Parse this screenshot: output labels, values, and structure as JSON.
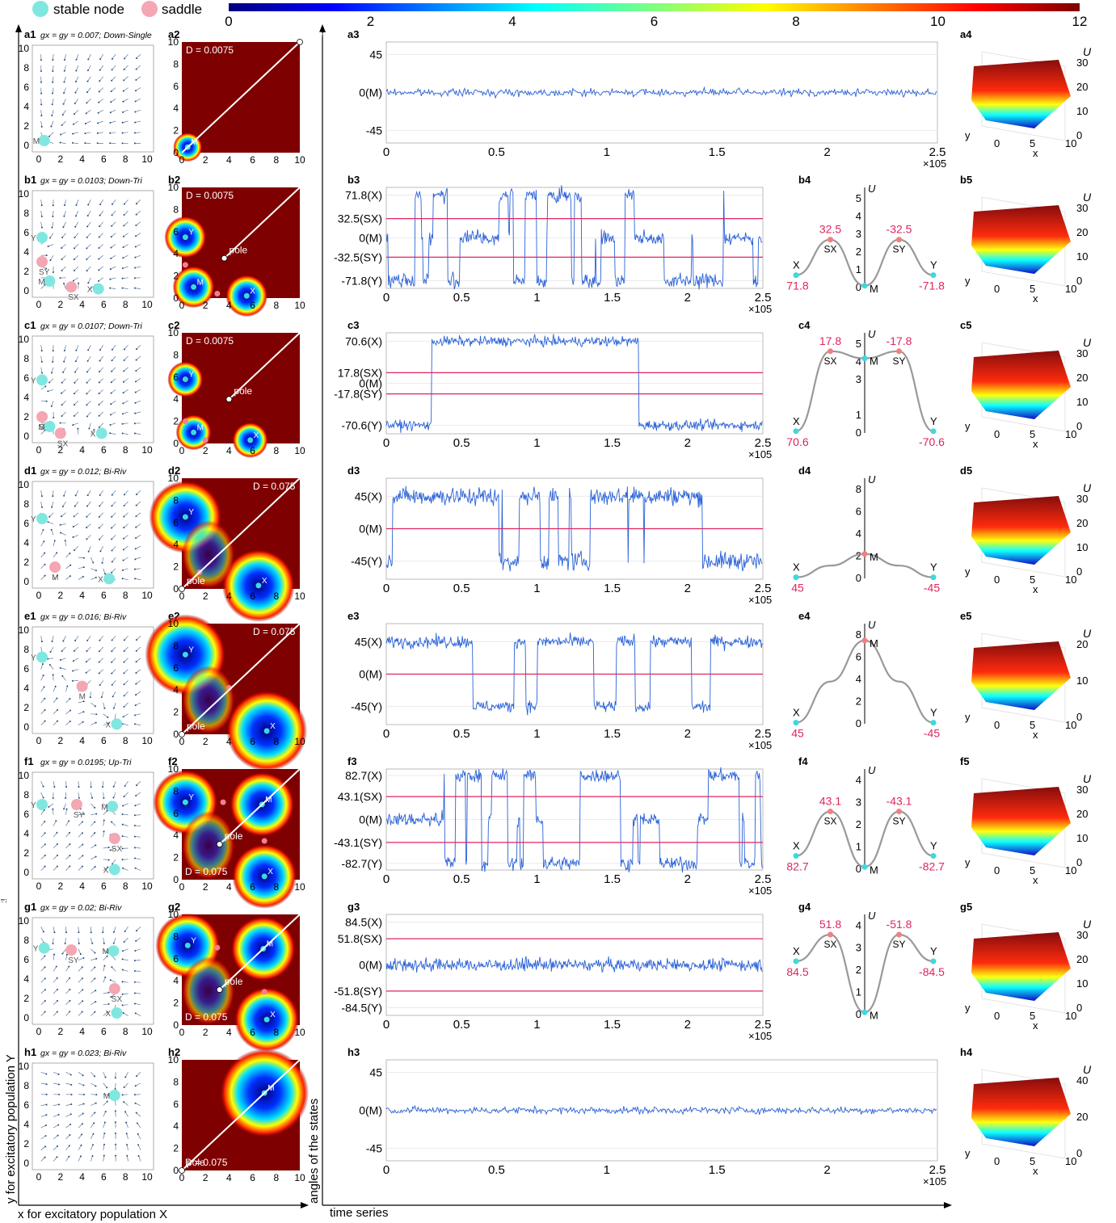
{
  "legend": {
    "stable_label": "stable node",
    "saddle_label": "saddle",
    "stable_color": "#7fe7e0",
    "saddle_color": "#f4a6b2"
  },
  "colorbar": {
    "ticks": [
      "0",
      "2",
      "4",
      "6",
      "8",
      "10",
      "12"
    ]
  },
  "axes_labels": {
    "phase_y": "y for excitatory population Y",
    "phase_x": "x for excitatory population X",
    "angles": "angles of the states",
    "time": "time series",
    "stray": ":!"
  },
  "chart_data": {
    "type": "line",
    "rows": [
      {
        "id": "a",
        "panels": [
          "a1",
          "a2",
          "a3",
          "a4"
        ],
        "param": "gx = gy = 0.007; Down-Single",
        "D": "D = 0.0075",
        "ticks": [
          "45",
          "0(M)",
          "-45"
        ],
        "tick_vals": [
          45,
          0,
          -45
        ],
        "ylim": [
          -60,
          60
        ],
        "lines": [],
        "mode": "M",
        "xticks": [
          "0",
          "0.5",
          "1",
          "1.5",
          "2",
          "2.5"
        ],
        "xmult": "×10^5",
        "landscape": null
      },
      {
        "id": "b",
        "panels": [
          "b1",
          "b2",
          "b3",
          "b4",
          "b5"
        ],
        "param": "gx = gy = 0.0103; Down-Tri",
        "D": "D = 0.0075",
        "ticks": [
          "71.8(X)",
          "32.5(SX)",
          "0(M)",
          "-32.5(SY)",
          "-71.8(Y)"
        ],
        "tick_vals": [
          71.8,
          32.5,
          0,
          -32.5,
          -71.8
        ],
        "ylim": [
          -85,
          85
        ],
        "lines": [
          32.5,
          -32.5
        ],
        "mode": "tri",
        "xticks": [
          "0",
          "0.5",
          "1",
          "1.5",
          "2",
          "2.5"
        ],
        "xmult": "×10^5",
        "landscape": {
          "umax": 5,
          "uticks": [
            "0",
            "1",
            "2",
            "3",
            "4",
            "5"
          ],
          "X": "71.8",
          "SX": "32.5",
          "SY": "-32.5",
          "Y": "-71.8",
          "uX": 0.7,
          "uSX": 2.7,
          "uM": 0.1,
          "uSY": 2.7,
          "uY": 0.7
        }
      },
      {
        "id": "c",
        "panels": [
          "c1",
          "c2",
          "c3",
          "c4",
          "c5"
        ],
        "param": "gx = gy = 0.0107; Down-Tri",
        "D": "D = 0.0075",
        "ticks": [
          "70.6(X)",
          "17.8(SX)",
          "0(M)",
          "-17.8(SY)",
          "-70.6(Y)"
        ],
        "tick_vals": [
          70.6,
          17.8,
          0,
          -17.8,
          -70.6
        ],
        "ylim": [
          -85,
          85
        ],
        "lines": [
          17.8,
          -17.8
        ],
        "mode": "c",
        "xticks": [
          "0",
          "0.5",
          "1",
          "1.5",
          "2",
          "2.5"
        ],
        "xmult": "×10^5",
        "landscape": {
          "umax": 5,
          "uticks": [
            "0",
            "1",
            "3",
            "4",
            "5"
          ],
          "X": "70.6",
          "SX": "17.8",
          "SY": "-17.8",
          "Y": "-70.6",
          "uX": 0.1,
          "uSX": 4.6,
          "uM": 4.2,
          "uSY": 4.6,
          "uY": 0.1
        }
      },
      {
        "id": "d",
        "panels": [
          "d1",
          "d2",
          "d3",
          "d4",
          "d5"
        ],
        "param": "gx = gy = 0.012; Bi-Riv",
        "D": "D = 0.075",
        "ticks": [
          "45(X)",
          "0(M)",
          "-45(Y)"
        ],
        "tick_vals": [
          45,
          0,
          -45
        ],
        "ylim": [
          -70,
          70
        ],
        "lines": [
          0
        ],
        "mode": "bi",
        "xticks": [
          "0",
          "0.5",
          "1",
          "1.5",
          "2",
          "2.5"
        ],
        "xmult": "×10^5",
        "landscape": {
          "umax": 8,
          "uticks": [
            "0",
            "2",
            "4",
            "6",
            "8"
          ],
          "X": "45",
          "Y": "-45",
          "uX": 0.1,
          "uM": 2.2,
          "uY": 0.1
        }
      },
      {
        "id": "e",
        "panels": [
          "e1",
          "e2",
          "e3",
          "e4",
          "e5"
        ],
        "param": "gx = gy = 0.016; Bi-Riv",
        "D": "D = 0.075",
        "ticks": [
          "45(X)",
          "0(M)",
          "-45(Y)"
        ],
        "tick_vals": [
          45,
          0,
          -45
        ],
        "ylim": [
          -70,
          70
        ],
        "lines": [
          0
        ],
        "mode": "e",
        "xticks": [
          "0",
          "0.5",
          "1",
          "1.5",
          "2",
          "2.5"
        ],
        "xmult": "×10^5",
        "landscape": {
          "umax": 8,
          "uticks": [
            "0",
            "2",
            "4",
            "6",
            "8"
          ],
          "X": "45",
          "Y": "-45",
          "uX": 0.1,
          "uM": 7.5,
          "uY": 0.1
        }
      },
      {
        "id": "f",
        "panels": [
          "f1",
          "f2",
          "f3",
          "f4",
          "f5"
        ],
        "param": "gx = gy = 0.0195; Up-Tri",
        "D": "D = 0.075",
        "ticks": [
          "82.7(X)",
          "43.1(SX)",
          "0(M)",
          "-43.1(SY)",
          "-82.7(Y)"
        ],
        "tick_vals": [
          82.7,
          43.1,
          0,
          -43.1,
          -82.7
        ],
        "ylim": [
          -95,
          95
        ],
        "lines": [
          43.1,
          -43.1
        ],
        "mode": "tri",
        "xticks": [
          "0",
          "0.5",
          "1",
          "1.5",
          "2",
          "2.5"
        ],
        "xmult": "×10^5",
        "landscape": {
          "umax": 4,
          "uticks": [
            "0",
            "1",
            "2",
            "3",
            "4"
          ],
          "X": "82.7",
          "SX": "43.1",
          "SY": "-43.1",
          "Y": "-82.7",
          "uX": 0.6,
          "uSX": 2.6,
          "uM": 0.1,
          "uSY": 2.6,
          "uY": 0.6
        }
      },
      {
        "id": "g",
        "panels": [
          "g1",
          "g2",
          "g3",
          "g4",
          "g5"
        ],
        "param": "gx = gy = 0.02; Bi-Riv",
        "D": "D = 0.075",
        "ticks": [
          "84.5(X)",
          "51.8(SX)",
          "0(M)",
          "-51.8(SY)",
          "-84.5(Y)"
        ],
        "tick_vals": [
          84.5,
          51.8,
          0,
          -51.8,
          -84.5
        ],
        "ylim": [
          -100,
          100
        ],
        "lines": [
          51.8,
          -51.8
        ],
        "mode": "g",
        "xticks": [
          "0",
          "0.5",
          "1",
          "1.5",
          "2",
          "2.5"
        ],
        "xmult": "×10^5",
        "landscape": {
          "umax": 4,
          "uticks": [
            "0",
            "1",
            "2",
            "3",
            "4"
          ],
          "X": "84.5",
          "SX": "51.8",
          "SY": "-51.8",
          "Y": "-84.5",
          "uX": 2.4,
          "uSX": 3.6,
          "uM": 0.1,
          "uSY": 3.6,
          "uY": 2.4
        }
      },
      {
        "id": "h",
        "panels": [
          "h1",
          "h2",
          "h3",
          "h4"
        ],
        "param": "gx = gy = 0.023; Bi-Riv",
        "D": "D = 0.075",
        "ticks": [
          "45",
          "0(M)",
          "-45"
        ],
        "tick_vals": [
          45,
          0,
          -45
        ],
        "ylim": [
          -60,
          60
        ],
        "lines": [],
        "mode": "M",
        "xticks": [
          "0",
          "0.5",
          "1",
          "1.5",
          "2",
          "2.5"
        ],
        "xmult": "×10^5",
        "landscape": null
      }
    ],
    "phase_axis_ticks": [
      "0",
      "2",
      "4",
      "6",
      "8",
      "10"
    ],
    "phase_nodes": {
      "a": {
        "stable": [
          [
            "M",
            0.5,
            0.5
          ]
        ],
        "saddle": []
      },
      "b": {
        "stable": [
          [
            "Y",
            0.3,
            5.5
          ],
          [
            "M",
            1,
            1
          ],
          [
            "X",
            5.5,
            0.2
          ]
        ],
        "saddle": [
          [
            "SY",
            0.3,
            3
          ],
          [
            "SX",
            3,
            0.4
          ]
        ]
      },
      "c": {
        "stable": [
          [
            "Y",
            0.3,
            5.8
          ],
          [
            "M",
            1,
            1
          ],
          [
            "X",
            5.8,
            0.3
          ]
        ],
        "saddle": [
          [
            "SY",
            0.3,
            2
          ],
          [
            "SX",
            2,
            0.3
          ]
        ]
      },
      "d": {
        "stable": [
          [
            "Y",
            0.3,
            6.5
          ],
          [
            "X",
            6.5,
            0.3
          ]
        ],
        "saddle": [
          [
            "M",
            1.5,
            1.5
          ]
        ]
      },
      "e": {
        "stable": [
          [
            "Y",
            0.3,
            7.2
          ],
          [
            "X",
            7.2,
            0.3
          ]
        ],
        "saddle": [
          [
            "M",
            4,
            4.2
          ]
        ]
      },
      "f": {
        "stable": [
          [
            "Y",
            0.3,
            7
          ],
          [
            "M",
            6.8,
            6.8
          ],
          [
            "X",
            7,
            0.3
          ]
        ],
        "saddle": [
          [
            "SY",
            3.5,
            7
          ],
          [
            "SX",
            7,
            3.5
          ]
        ]
      },
      "g": {
        "stable": [
          [
            "Y",
            0.5,
            7.2
          ],
          [
            "M",
            6.9,
            6.9
          ],
          [
            "X",
            7.2,
            0.5
          ]
        ],
        "saddle": [
          [
            "SY",
            3,
            7
          ],
          [
            "SX",
            7,
            3
          ]
        ]
      },
      "h": {
        "stable": [
          [
            "M",
            7,
            7
          ]
        ],
        "saddle": []
      }
    },
    "surface_axis": {
      "x": "x",
      "y": "y",
      "u": "U"
    },
    "surface_ticks": {
      "a": [
        "30",
        "20",
        "10",
        "0"
      ],
      "b": [
        "30",
        "20",
        "10",
        "0"
      ],
      "c": [
        "30",
        "20",
        "10",
        "0"
      ],
      "d": [
        "30",
        "20",
        "10",
        "0"
      ],
      "e": [
        "20",
        "10",
        "0"
      ],
      "f": [
        "30",
        "20",
        "10",
        "0"
      ],
      "g": [
        "30",
        "20",
        "10",
        "0"
      ],
      "h": [
        "40",
        "20",
        "0"
      ]
    },
    "surface_xy_ticks": [
      "0",
      "5",
      "10"
    ]
  }
}
